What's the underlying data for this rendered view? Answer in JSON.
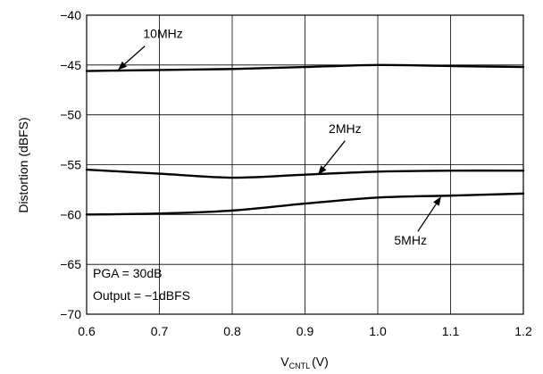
{
  "chart_data": {
    "type": "line",
    "xlabel": "V",
    "xlabel_sub": "CNTL",
    "xlabel_unit": "(V)",
    "ylabel": "Distortion (dBFS)",
    "xlim": [
      0.6,
      1.2
    ],
    "ylim": [
      -70,
      -40
    ],
    "grid": true,
    "x_ticks": [
      0.6,
      0.7,
      0.8,
      0.9,
      1.0,
      1.1,
      1.2
    ],
    "x_tick_labels": [
      "0.6",
      "0.7",
      "0.8",
      "0.9",
      "1.0",
      "1.1",
      "1.2"
    ],
    "y_ticks": [
      -40,
      -45,
      -50,
      -55,
      -60,
      -65,
      -70
    ],
    "y_tick_labels": [
      "−40",
      "−45",
      "−50",
      "−55",
      "−60",
      "−65",
      "−70"
    ],
    "series": [
      {
        "name": "10MHz",
        "x": [
          0.6,
          0.7,
          0.8,
          0.9,
          1.0,
          1.1,
          1.2
        ],
        "y": [
          -45.6,
          -45.5,
          -45.4,
          -45.2,
          -45.0,
          -45.1,
          -45.2
        ]
      },
      {
        "name": "2MHz",
        "x": [
          0.6,
          0.7,
          0.8,
          0.9,
          1.0,
          1.1,
          1.2
        ],
        "y": [
          -55.5,
          -55.9,
          -56.3,
          -56.0,
          -55.7,
          -55.6,
          -55.6
        ]
      },
      {
        "name": "5MHz",
        "x": [
          0.6,
          0.7,
          0.8,
          0.9,
          1.0,
          1.1,
          1.2
        ],
        "y": [
          -60.0,
          -59.9,
          -59.6,
          -58.9,
          -58.3,
          -58.1,
          -57.9
        ]
      }
    ],
    "annotations": [
      {
        "text": "10MHz",
        "series": "10MHz",
        "text_x": 0.705,
        "text_y": -42.3,
        "arrow_from": [
          0.68,
          -43.1
        ],
        "arrow_to": [
          0.643,
          -45.5
        ]
      },
      {
        "text": "2MHz",
        "series": "2MHz",
        "text_x": 0.955,
        "text_y": -51.8,
        "arrow_from": [
          0.955,
          -52.6
        ],
        "arrow_to": [
          0.918,
          -56.0
        ]
      },
      {
        "text": "5MHz",
        "series": "5MHz",
        "text_x": 1.045,
        "text_y": -63.0,
        "arrow_from": [
          1.055,
          -61.7
        ],
        "arrow_to": [
          1.087,
          -58.2
        ]
      }
    ],
    "notes": [
      "PGA = 30dB",
      "Output = −1dBFS"
    ]
  }
}
